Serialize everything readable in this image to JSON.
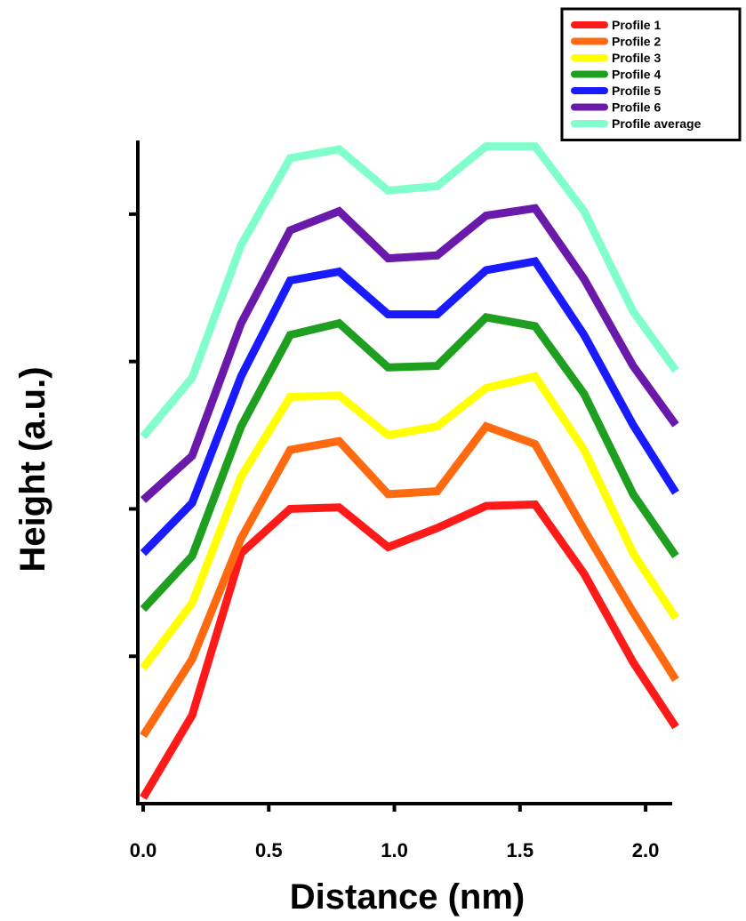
{
  "chart_data": {
    "type": "line",
    "xlabel": "Distance (nm)",
    "ylabel": "Height (a.u.)",
    "xlim": [
      0,
      2.12
    ],
    "ylim": [
      0,
      22.5
    ],
    "x_ticks": [
      0.0,
      0.5,
      1.0,
      1.5,
      2.0
    ],
    "x_tick_labels": [
      "0.0",
      "0.5",
      "1.0",
      "1.5",
      "2.0"
    ],
    "y_ticks": [
      5,
      10,
      15,
      20
    ],
    "y_tick_labels": [
      "",
      "",
      "",
      ""
    ],
    "grid": false,
    "legend_position": "top-right",
    "x": [
      0.0,
      0.195,
      0.39,
      0.585,
      0.78,
      0.975,
      1.17,
      1.365,
      1.56,
      1.755,
      1.95,
      2.12
    ],
    "series": [
      {
        "name": "Profile 1",
        "color": "#ff1a1a",
        "values": [
          0.2,
          3.0,
          8.5,
          10.0,
          10.05,
          8.7,
          9.35,
          10.1,
          10.15,
          7.8,
          4.8,
          2.6
        ]
      },
      {
        "name": "Profile 2",
        "color": "#ff6a10",
        "values": [
          2.3,
          4.9,
          9.0,
          12.0,
          12.3,
          10.5,
          10.6,
          12.8,
          12.2,
          9.3,
          6.5,
          4.2
        ]
      },
      {
        "name": "Profile 3",
        "color": "#ffff00",
        "values": [
          4.6,
          6.8,
          11.1,
          13.8,
          13.85,
          12.5,
          12.8,
          14.1,
          14.5,
          12.0,
          8.5,
          6.3
        ]
      },
      {
        "name": "Profile 4",
        "color": "#1f9f1f",
        "values": [
          6.6,
          8.4,
          12.8,
          15.9,
          16.3,
          14.8,
          14.85,
          16.5,
          16.2,
          13.9,
          10.5,
          8.4
        ]
      },
      {
        "name": "Profile 5",
        "color": "#1a1aff",
        "values": [
          8.5,
          10.2,
          14.5,
          17.75,
          18.05,
          16.6,
          16.6,
          18.1,
          18.4,
          15.9,
          12.85,
          10.55
        ]
      },
      {
        "name": "Profile 6",
        "color": "#6a1aaa",
        "values": [
          10.3,
          11.8,
          16.3,
          19.45,
          20.1,
          18.5,
          18.6,
          19.95,
          20.2,
          17.8,
          14.85,
          12.85
        ]
      },
      {
        "name": "Profile average",
        "color": "#80ffcc",
        "values": [
          12.45,
          14.45,
          18.95,
          21.9,
          22.2,
          20.8,
          20.95,
          22.3,
          22.3,
          20.1,
          16.7,
          14.7
        ]
      }
    ]
  }
}
